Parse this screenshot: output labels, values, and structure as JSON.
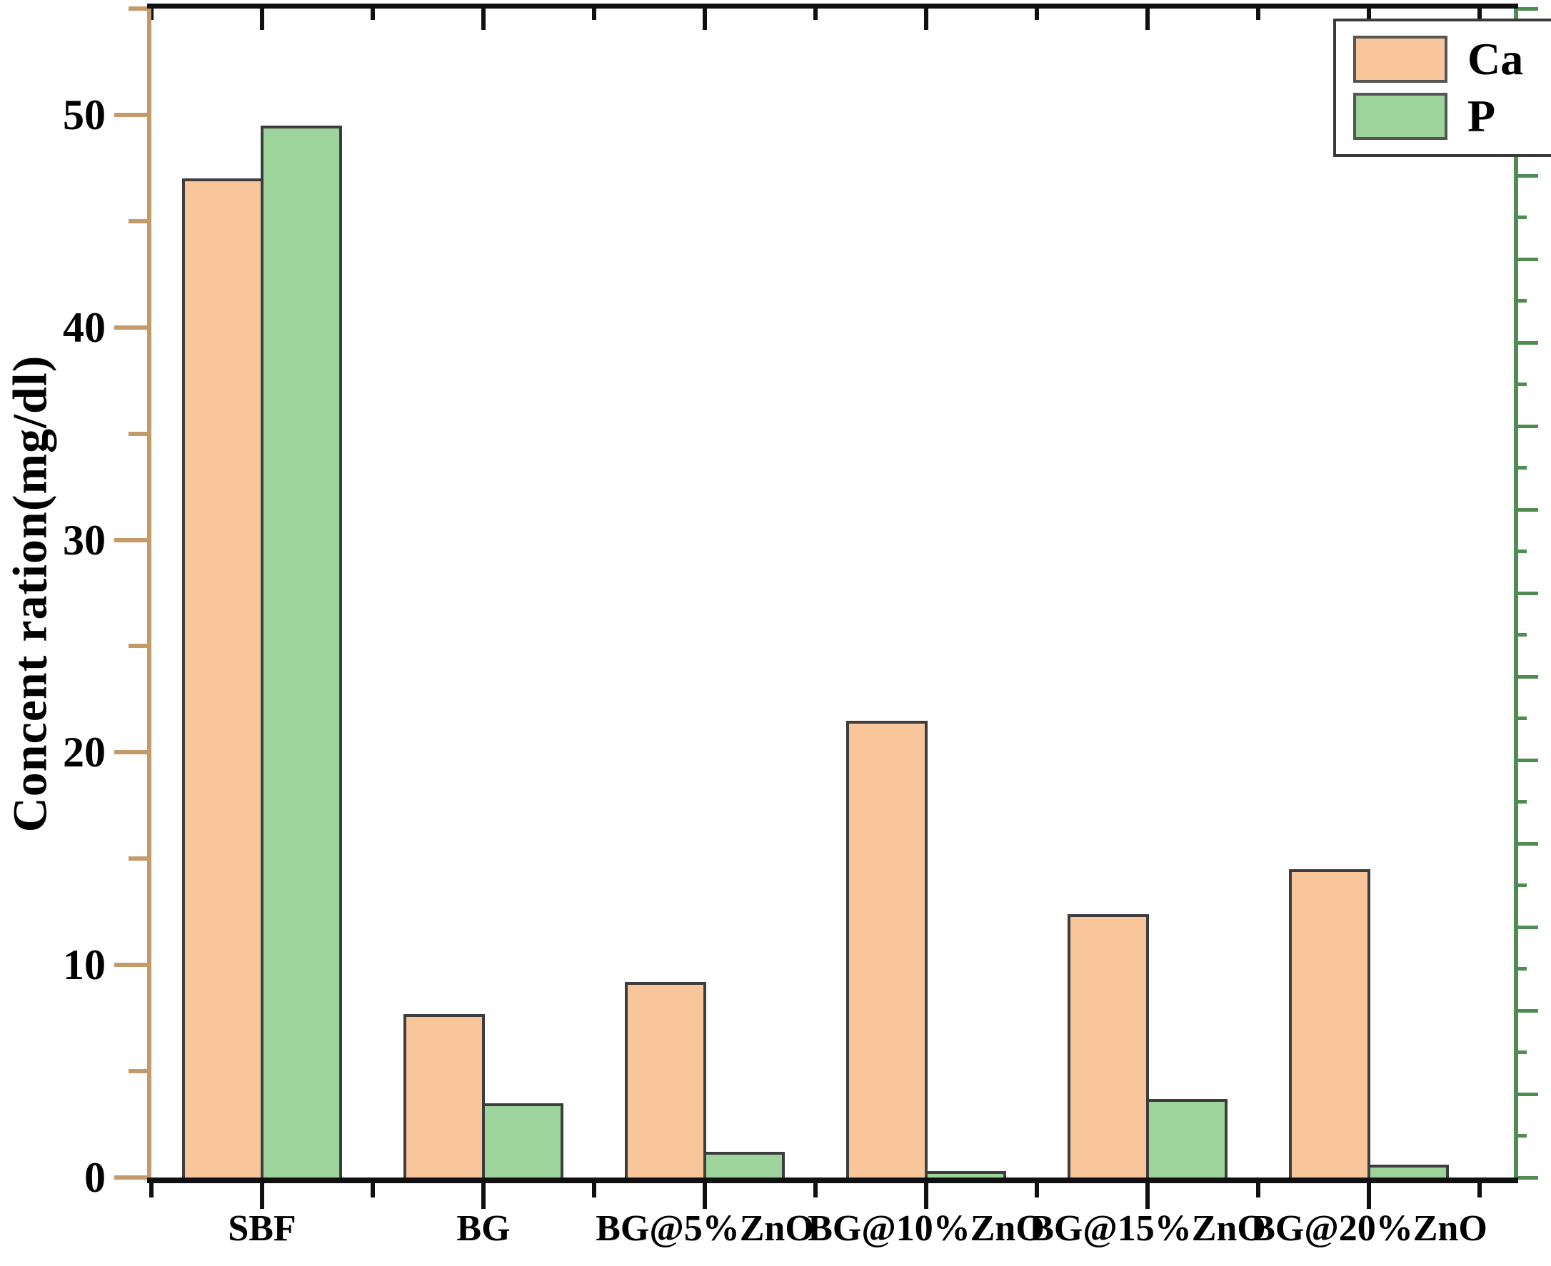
{
  "figure": {
    "background": "#ffffff"
  },
  "chart_data": {
    "type": "bar",
    "title": "",
    "xlabel": "",
    "ylabel": "Concent ration(mg/dl)",
    "categories": [
      "SBF",
      "BG",
      "BG@5%ZnO",
      "BG@10%ZnO",
      "BG@15%ZnO",
      "BG@20%ZnO"
    ],
    "series": [
      {
        "name": "Ca",
        "color": "#f9c69c",
        "values": [
          47.0,
          7.7,
          9.2,
          21.5,
          12.4,
          14.5
        ]
      },
      {
        "name": "P",
        "color": "#9cd49c",
        "values": [
          49.5,
          3.5,
          1.2,
          0.3,
          3.7,
          0.6
        ]
      }
    ],
    "ylim": [
      0,
      55
    ],
    "grid": false,
    "legend_position": "inside top-right",
    "bar_edge_color": "#3d3d3d"
  },
  "y_axis": {
    "title": "Concent ration(mg/dl)",
    "major_ticks": [
      0,
      10,
      20,
      30,
      40,
      50
    ],
    "minor_ticks": [
      5,
      15,
      25,
      35,
      45,
      55
    ],
    "range": [
      0,
      55
    ],
    "spine_color": "#c49a6a",
    "label_color": "#000000"
  },
  "x_axis": {
    "categories": [
      "SBF",
      "BG",
      "BG@5%ZnO",
      "BG@10%ZnO",
      "BG@15%ZnO",
      "BG@20%ZnO"
    ],
    "spine_color": "#101010"
  },
  "right_axis": {
    "labeled": false,
    "spine_color": "#4f8c51",
    "tick_count": 29
  },
  "legend": {
    "items": [
      {
        "label": "Ca",
        "color": "#f9c69c"
      },
      {
        "label": "P",
        "color": "#9cd49c"
      }
    ]
  }
}
